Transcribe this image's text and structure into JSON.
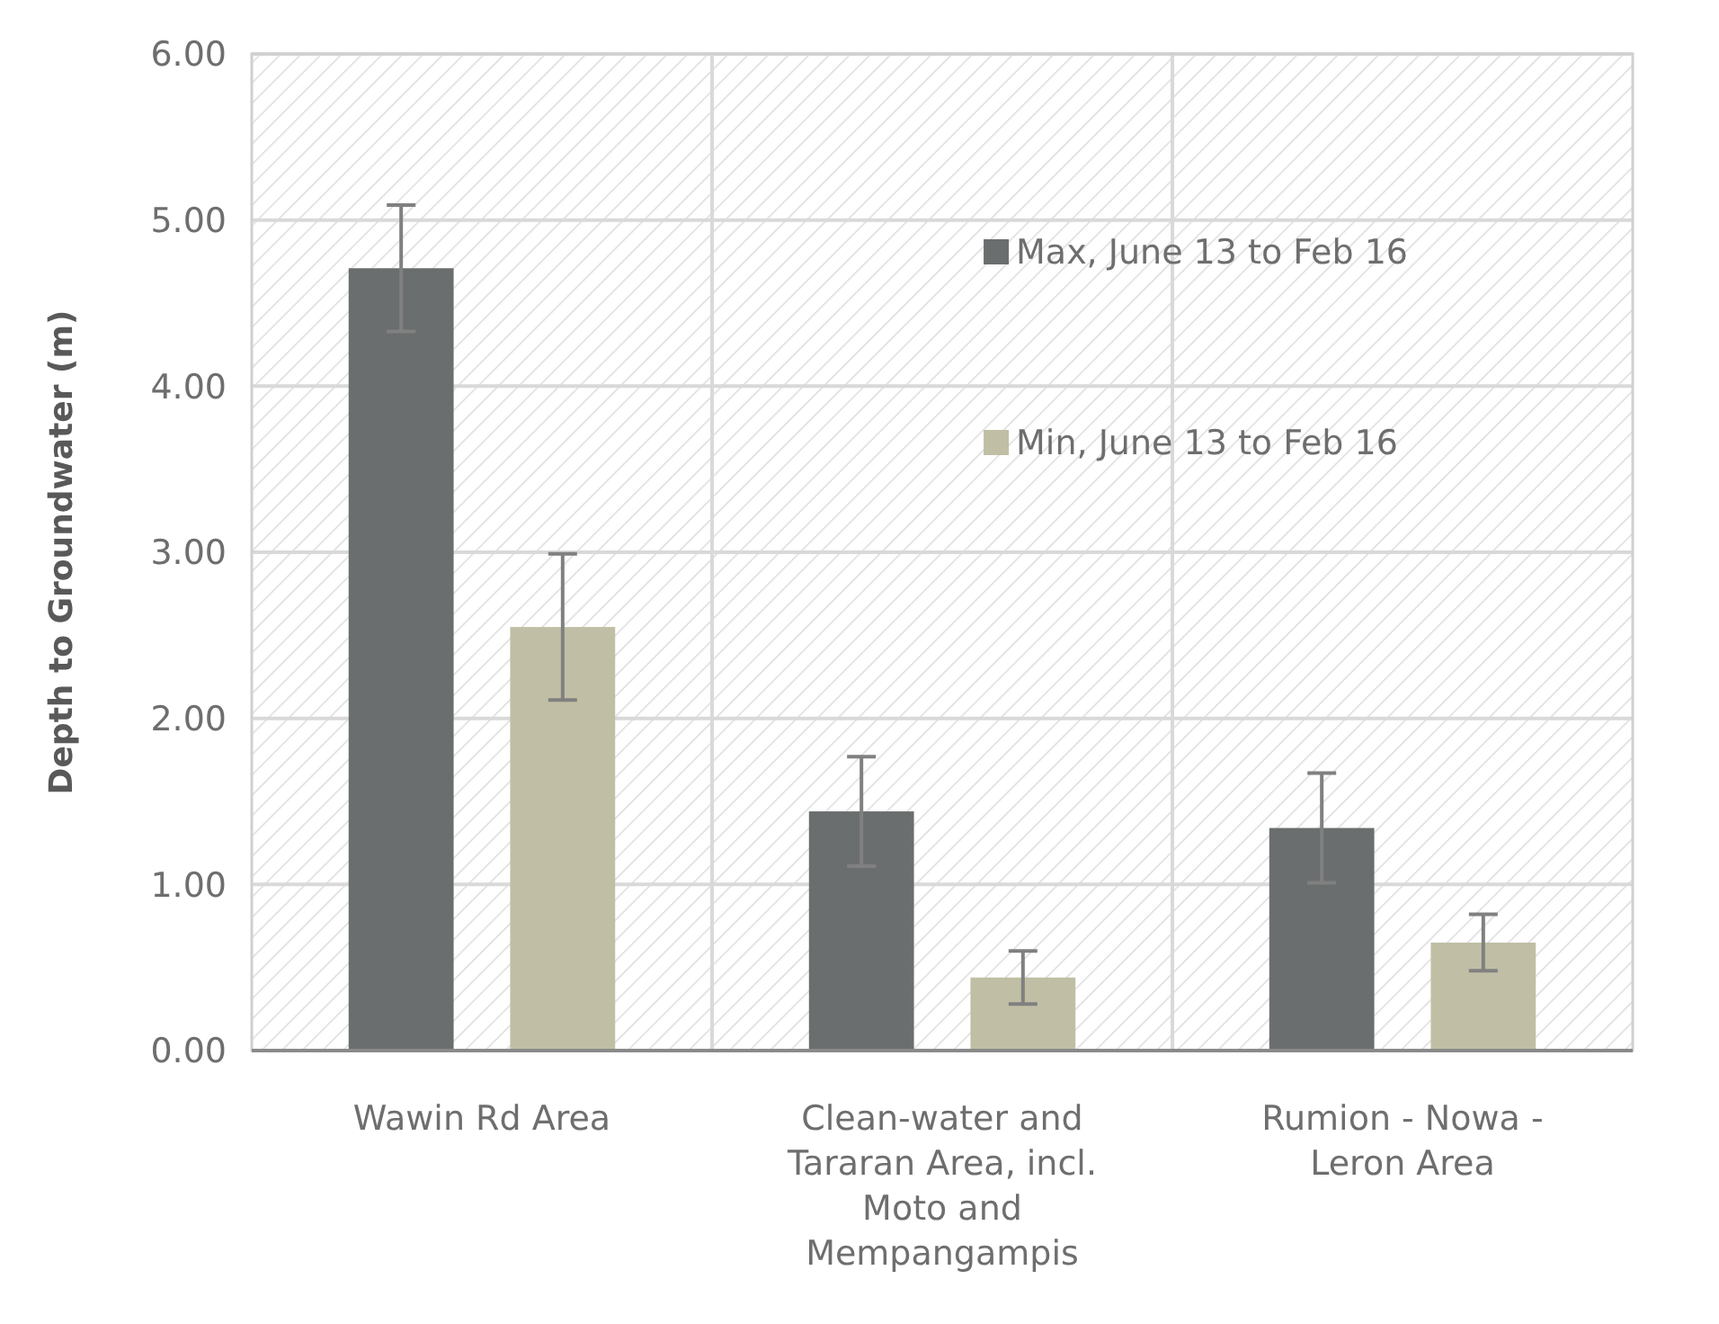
{
  "chart_data": {
    "type": "bar",
    "ylabel": "Depth to Groundwater (m)",
    "categories": [
      "Wawin Rd Area",
      "Clean-water and Tararan Area, incl. Moto and Mempangampis",
      "Rumion - Nowa - Leron Area"
    ],
    "series": [
      {
        "name": "Max, June 13 to Feb 16",
        "color": "#6b6e6e",
        "values": [
          4.71,
          1.44,
          1.34
        ],
        "errors": [
          0.38,
          0.33,
          0.33
        ]
      },
      {
        "name": "Min, June 13 to Feb 16",
        "color": "#c0bfa5",
        "values": [
          2.55,
          0.44,
          0.65
        ],
        "errors": [
          0.44,
          0.16,
          0.17
        ]
      }
    ],
    "ylim": [
      0,
      6
    ],
    "yticks": [
      {
        "value": 0,
        "label": "0.00"
      },
      {
        "value": 1,
        "label": "1.00"
      },
      {
        "value": 2,
        "label": "2.00"
      },
      {
        "value": 3,
        "label": "3.00"
      },
      {
        "value": 4,
        "label": "4.00"
      },
      {
        "value": 5,
        "label": "5.00"
      },
      {
        "value": 6,
        "label": "6.00"
      }
    ],
    "grid": true,
    "legend": "top right"
  }
}
